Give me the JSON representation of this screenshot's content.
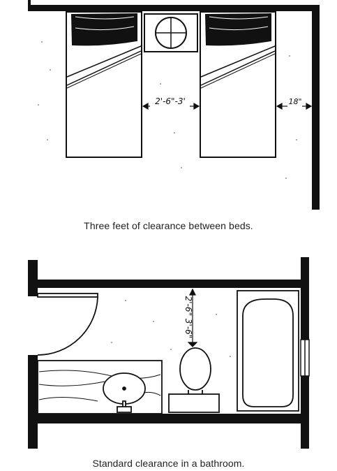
{
  "figures": [
    {
      "caption": "Three feet of clearance between beds.",
      "dimension_labels": {
        "between_beds": "2'-6\"-3'",
        "bed_to_wall": "18\""
      }
    },
    {
      "caption": "Standard clearance in a bathroom.",
      "dimension_labels": {
        "toilet_clearance": "2'-6\" 3'-6\""
      }
    }
  ],
  "colors": {
    "ink": "#111111",
    "paper": "#ffffff",
    "caption": "#222222"
  }
}
